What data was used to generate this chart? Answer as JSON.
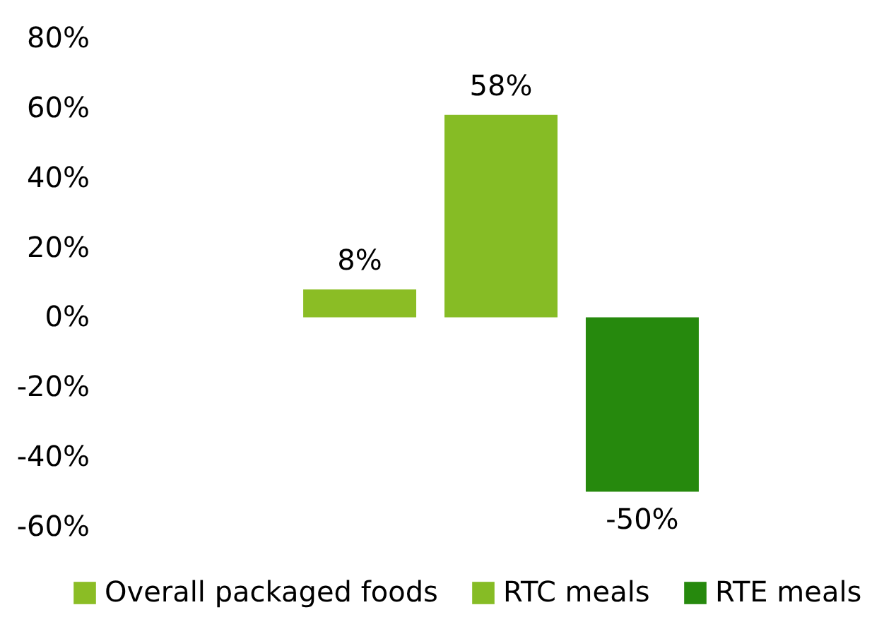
{
  "chart_data": {
    "type": "bar",
    "categories": [
      null
    ],
    "series": [
      {
        "name": "Overall packaged foods",
        "color": "#8bbd25",
        "values": [
          8
        ],
        "value_labels": [
          "8%"
        ]
      },
      {
        "name": "RTC meals",
        "color": "#86bc25",
        "values": [
          58
        ],
        "value_labels": [
          "58%"
        ]
      },
      {
        "name": "RTE meals",
        "color": "#26890d",
        "values": [
          -50
        ],
        "value_labels": [
          "-50%"
        ]
      }
    ],
    "ylim": [
      -60,
      80
    ],
    "yticks": [
      {
        "value": -60,
        "label": "-60%"
      },
      {
        "value": -40,
        "label": "-40%"
      },
      {
        "value": -20,
        "label": "-20%"
      },
      {
        "value": 0,
        "label": "0%"
      },
      {
        "value": 20,
        "label": "20%"
      },
      {
        "value": 40,
        "label": "40%"
      },
      {
        "value": 60,
        "label": "60%"
      },
      {
        "value": 80,
        "label": "80%"
      }
    ],
    "legend": "bottom",
    "tick_labels": "y"
  }
}
